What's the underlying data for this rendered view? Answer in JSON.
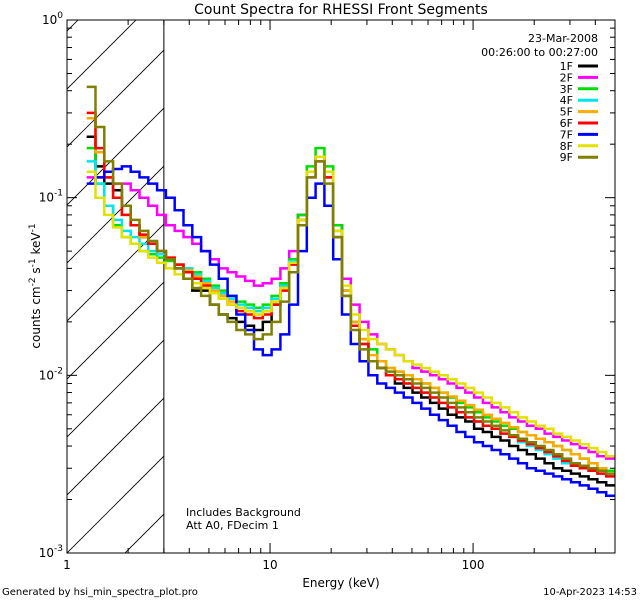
{
  "chart_data": {
    "type": "line",
    "title": "Count Spectra for RHESSI Front Segments",
    "xlabel": "Energy (keV)",
    "ylabel_parts": [
      "counts cm",
      "-2",
      " s",
      "-1",
      " keV",
      "-1"
    ],
    "xscale": "log",
    "yscale": "log",
    "xlim": [
      1,
      500
    ],
    "ylim": [
      0.001,
      1
    ],
    "x_ticks": [
      {
        "value": 1,
        "label": "1"
      },
      {
        "value": 10,
        "label": "10"
      },
      {
        "value": 100,
        "label": "100"
      }
    ],
    "y_ticks": [
      {
        "value": 1,
        "base": "10",
        "exp": "0"
      },
      {
        "value": 0.1,
        "base": "10",
        "exp": "-1"
      },
      {
        "value": 0.01,
        "base": "10",
        "exp": "-2"
      },
      {
        "value": 0.001,
        "base": "10",
        "exp": "-3"
      }
    ],
    "hatched_region_max_keV": 3,
    "annotations": {
      "date": "23-Mar-2008",
      "time_range": "00:26:00 to 00:27:00",
      "background_note": "Includes Background",
      "attenuator_note": "Att A0, FDecim 1"
    },
    "series": [
      {
        "name": "1F",
        "color": "#000000",
        "values": [
          0.22,
          0.15,
          0.12,
          0.11,
          0.09,
          0.07,
          0.06,
          0.055,
          0.05,
          0.045,
          0.04,
          0.035,
          0.03,
          0.03,
          0.025,
          0.022,
          0.021,
          0.02,
          0.019,
          0.018,
          0.02,
          0.025,
          0.032,
          0.045,
          0.08,
          0.14,
          0.17,
          0.14,
          0.07,
          0.03,
          0.02,
          0.015,
          0.012,
          0.011,
          0.01,
          0.009,
          0.0085,
          0.008,
          0.0075,
          0.007,
          0.0065,
          0.006,
          0.0058,
          0.0055,
          0.005,
          0.0048,
          0.0045,
          0.0043,
          0.004,
          0.0038,
          0.0036,
          0.0034,
          0.0032,
          0.003,
          0.0029,
          0.0028,
          0.0027,
          0.0026,
          0.0025,
          0.0024
        ]
      },
      {
        "name": "2F",
        "color": "#ff00ff",
        "values": [
          0.13,
          0.13,
          0.13,
          0.12,
          0.12,
          0.11,
          0.1,
          0.09,
          0.08,
          0.07,
          0.065,
          0.06,
          0.055,
          0.05,
          0.045,
          0.04,
          0.038,
          0.036,
          0.034,
          0.032,
          0.033,
          0.035,
          0.04,
          0.05,
          0.08,
          0.13,
          0.16,
          0.13,
          0.07,
          0.035,
          0.025,
          0.02,
          0.017,
          0.015,
          0.014,
          0.013,
          0.012,
          0.011,
          0.0105,
          0.01,
          0.0095,
          0.009,
          0.0085,
          0.008,
          0.0075,
          0.007,
          0.0066,
          0.0062,
          0.0058,
          0.0055,
          0.0052,
          0.005,
          0.0047,
          0.0045,
          0.0043,
          0.0041,
          0.0039,
          0.0037,
          0.0035,
          0.0034
        ]
      },
      {
        "name": "3F",
        "color": "#00dd00",
        "values": [
          0.19,
          0.12,
          0.09,
          0.07,
          0.06,
          0.055,
          0.05,
          0.048,
          0.046,
          0.044,
          0.042,
          0.04,
          0.038,
          0.035,
          0.032,
          0.03,
          0.028,
          0.026,
          0.025,
          0.024,
          0.025,
          0.028,
          0.033,
          0.045,
          0.08,
          0.15,
          0.19,
          0.15,
          0.07,
          0.03,
          0.02,
          0.016,
          0.014,
          0.012,
          0.011,
          0.0105,
          0.01,
          0.0095,
          0.009,
          0.0085,
          0.008,
          0.0075,
          0.007,
          0.0066,
          0.0062,
          0.0058,
          0.0055,
          0.0052,
          0.005,
          0.0048,
          0.0046,
          0.0044,
          0.0042,
          0.004,
          0.0038,
          0.0036,
          0.0034,
          0.0032,
          0.003,
          0.0029
        ]
      },
      {
        "name": "4F",
        "color": "#00e5ee",
        "values": [
          0.16,
          0.12,
          0.09,
          0.075,
          0.065,
          0.06,
          0.055,
          0.05,
          0.048,
          0.045,
          0.042,
          0.04,
          0.037,
          0.034,
          0.031,
          0.029,
          0.027,
          0.025,
          0.024,
          0.023,
          0.024,
          0.027,
          0.032,
          0.044,
          0.075,
          0.14,
          0.17,
          0.14,
          0.065,
          0.03,
          0.02,
          0.015,
          0.012,
          0.011,
          0.01,
          0.0095,
          0.009,
          0.0085,
          0.008,
          0.0075,
          0.007,
          0.0066,
          0.0062,
          0.0058,
          0.0055,
          0.0052,
          0.005,
          0.0047,
          0.0045,
          0.0042,
          0.004,
          0.0038,
          0.0036,
          0.0034,
          0.0032,
          0.0031,
          0.003,
          0.0029,
          0.0028,
          0.0027
        ]
      },
      {
        "name": "5F",
        "color": "#ffaa00",
        "values": [
          0.28,
          0.18,
          0.13,
          0.1,
          0.08,
          0.07,
          0.06,
          0.055,
          0.05,
          0.046,
          0.042,
          0.039,
          0.036,
          0.033,
          0.03,
          0.028,
          0.026,
          0.024,
          0.023,
          0.022,
          0.023,
          0.026,
          0.031,
          0.043,
          0.075,
          0.14,
          0.17,
          0.14,
          0.065,
          0.03,
          0.02,
          0.016,
          0.013,
          0.012,
          0.011,
          0.0105,
          0.01,
          0.0095,
          0.009,
          0.0085,
          0.008,
          0.0076,
          0.0072,
          0.0068,
          0.0064,
          0.006,
          0.0057,
          0.0054,
          0.0051,
          0.0048,
          0.0046,
          0.0044,
          0.0042,
          0.004,
          0.0038,
          0.0036,
          0.0034,
          0.0032,
          0.003,
          0.0028
        ]
      },
      {
        "name": "6F",
        "color": "#ff0000",
        "values": [
          0.3,
          0.19,
          0.13,
          0.1,
          0.08,
          0.07,
          0.062,
          0.055,
          0.05,
          0.046,
          0.042,
          0.038,
          0.035,
          0.032,
          0.029,
          0.027,
          0.025,
          0.023,
          0.022,
          0.021,
          0.022,
          0.025,
          0.03,
          0.042,
          0.075,
          0.14,
          0.17,
          0.13,
          0.06,
          0.028,
          0.019,
          0.015,
          0.012,
          0.011,
          0.01,
          0.0095,
          0.009,
          0.0085,
          0.008,
          0.0075,
          0.007,
          0.0066,
          0.0062,
          0.0058,
          0.0055,
          0.0052,
          0.005,
          0.0047,
          0.0045,
          0.0043,
          0.0041,
          0.0039,
          0.0037,
          0.0035,
          0.0033,
          0.0031,
          0.003,
          0.0029,
          0.0028,
          0.0027
        ]
      },
      {
        "name": "7F",
        "color": "#0000ff",
        "values": [
          0.12,
          0.13,
          0.14,
          0.145,
          0.15,
          0.14,
          0.13,
          0.12,
          0.11,
          0.1,
          0.085,
          0.07,
          0.06,
          0.05,
          0.042,
          0.035,
          0.028,
          0.022,
          0.018,
          0.014,
          0.013,
          0.014,
          0.017,
          0.025,
          0.05,
          0.1,
          0.12,
          0.09,
          0.045,
          0.022,
          0.015,
          0.012,
          0.01,
          0.009,
          0.0085,
          0.008,
          0.0075,
          0.007,
          0.0065,
          0.006,
          0.0056,
          0.0052,
          0.0048,
          0.0045,
          0.0042,
          0.004,
          0.0038,
          0.0036,
          0.0034,
          0.0032,
          0.003,
          0.0029,
          0.0028,
          0.0027,
          0.0026,
          0.0025,
          0.0024,
          0.0023,
          0.0022,
          0.0021
        ]
      },
      {
        "name": "8F",
        "color": "#e2e200",
        "values": [
          0.14,
          0.1,
          0.08,
          0.068,
          0.06,
          0.055,
          0.05,
          0.046,
          0.043,
          0.04,
          0.037,
          0.035,
          0.033,
          0.031,
          0.029,
          0.027,
          0.025,
          0.024,
          0.023,
          0.022,
          0.023,
          0.026,
          0.031,
          0.043,
          0.075,
          0.14,
          0.17,
          0.14,
          0.065,
          0.032,
          0.022,
          0.018,
          0.016,
          0.015,
          0.014,
          0.013,
          0.012,
          0.0115,
          0.011,
          0.0105,
          0.01,
          0.0095,
          0.009,
          0.0085,
          0.008,
          0.0075,
          0.007,
          0.0066,
          0.0062,
          0.0058,
          0.0055,
          0.0052,
          0.005,
          0.0047,
          0.0045,
          0.0043,
          0.0041,
          0.0039,
          0.0037,
          0.0035
        ]
      },
      {
        "name": "9F",
        "color": "#808000",
        "values": [
          0.42,
          0.25,
          0.16,
          0.12,
          0.09,
          0.075,
          0.065,
          0.057,
          0.05,
          0.045,
          0.04,
          0.035,
          0.031,
          0.028,
          0.025,
          0.022,
          0.02,
          0.018,
          0.017,
          0.016,
          0.017,
          0.02,
          0.026,
          0.038,
          0.07,
          0.13,
          0.16,
          0.12,
          0.06,
          0.028,
          0.018,
          0.014,
          0.012,
          0.011,
          0.0105,
          0.01,
          0.0095,
          0.009,
          0.0085,
          0.008,
          0.0075,
          0.007,
          0.0066,
          0.0062,
          0.0058,
          0.0055,
          0.0052,
          0.0049,
          0.0046,
          0.0044,
          0.0042,
          0.004,
          0.0038,
          0.0036,
          0.0034,
          0.0032,
          0.0031,
          0.003,
          0.0029,
          0.0028
        ]
      }
    ]
  },
  "footer": {
    "generated_by": "Generated by hsi_min_spectra_plot.pro",
    "timestamp": "10-Apr-2023 14:53"
  }
}
